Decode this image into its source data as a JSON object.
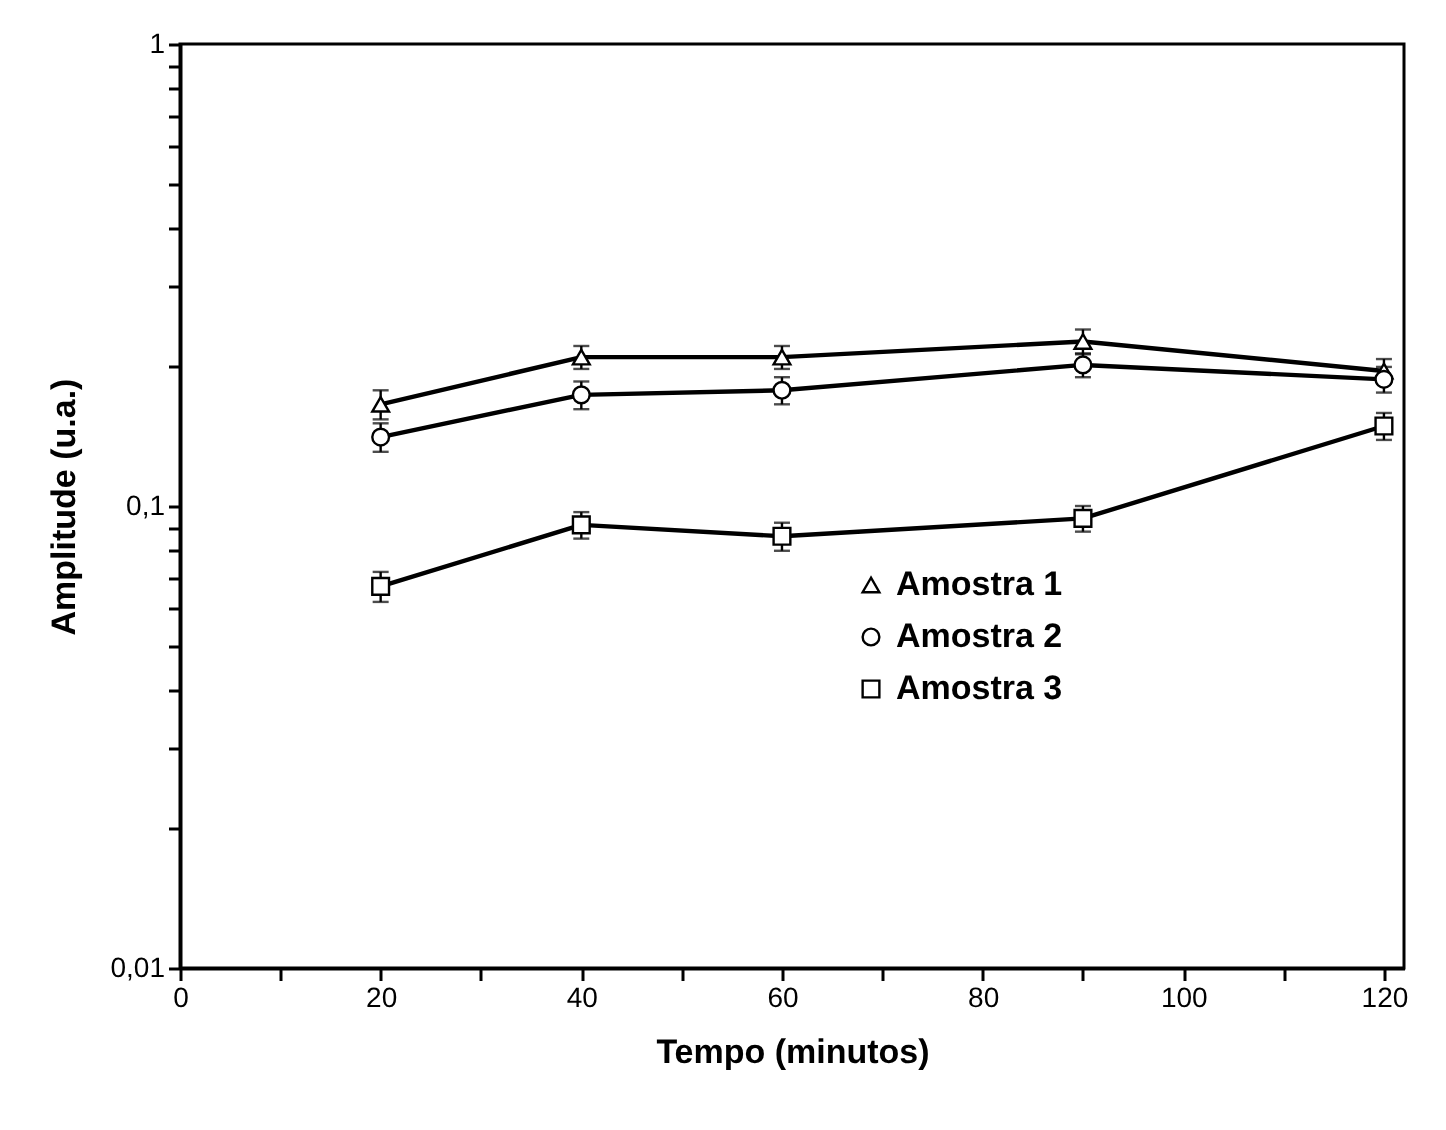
{
  "chart_data": {
    "type": "line",
    "xlabel": "Tempo (minutos)",
    "ylabel": "Amplitude (u.a.)",
    "x": [
      20,
      40,
      60,
      90,
      120
    ],
    "series": [
      {
        "name": "Amostra 1",
        "color": "#000000",
        "marker": "triangle",
        "values": [
          0.166,
          0.21,
          0.21,
          0.227,
          0.196
        ],
        "errors": [
          0.012,
          0.012,
          0.012,
          0.014,
          0.012
        ]
      },
      {
        "name": "Amostra 2",
        "color": "#000000",
        "marker": "circle",
        "values": [
          0.141,
          0.174,
          0.178,
          0.202,
          0.188
        ],
        "errors": [
          0.01,
          0.012,
          0.012,
          0.012,
          0.012
        ]
      },
      {
        "name": "Amostra 3",
        "color": "#000000",
        "marker": "square",
        "values": [
          0.067,
          0.091,
          0.086,
          0.094,
          0.149
        ],
        "errors": [
          0.005,
          0.006,
          0.006,
          0.006,
          0.01
        ]
      }
    ],
    "log": "y",
    "xlim": [
      0,
      122
    ],
    "ylim": [
      0.01,
      1
    ],
    "xticks": [
      0,
      {
        "value": 10,
        "label": null
      },
      20,
      {
        "value": 30,
        "label": null
      },
      40,
      {
        "value": 50,
        "label": null
      },
      60,
      {
        "value": 70,
        "label": null
      },
      80,
      {
        "value": 90,
        "label": null
      },
      100,
      {
        "value": 110,
        "label": null
      },
      120
    ],
    "yticks": [
      {
        "value": 0.01,
        "label": "0,01"
      },
      {
        "value": 0.02,
        "label": null
      },
      {
        "value": 0.03,
        "label": null
      },
      {
        "value": 0.04,
        "label": null
      },
      {
        "value": 0.05,
        "label": null
      },
      {
        "value": 0.06,
        "label": null
      },
      {
        "value": 0.07,
        "label": null
      },
      {
        "value": 0.08,
        "label": null
      },
      {
        "value": 0.09,
        "label": null
      },
      {
        "value": 0.1,
        "label": "0,1"
      },
      {
        "value": 0.2,
        "label": null
      },
      {
        "value": 0.3,
        "label": null
      },
      {
        "value": 0.4,
        "label": null
      },
      {
        "value": 0.5,
        "label": null
      },
      {
        "value": 0.6,
        "label": null
      },
      {
        "value": 0.7,
        "label": null
      },
      {
        "value": 0.8,
        "label": null
      },
      {
        "value": 0.9,
        "label": null
      },
      {
        "value": 1,
        "label": "1"
      }
    ],
    "grid": false,
    "legend": "right",
    "line_style": "solid"
  }
}
